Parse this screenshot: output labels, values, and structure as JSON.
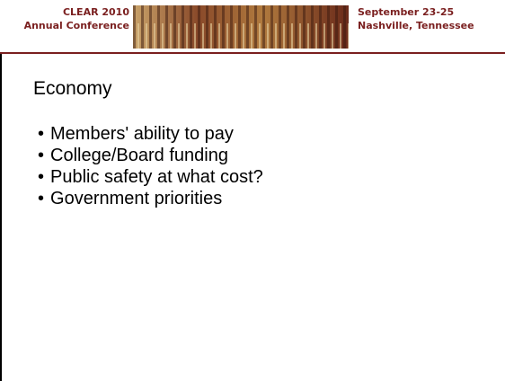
{
  "header": {
    "left": [
      "CLEAR 2010",
      "Annual Conference"
    ],
    "right": [
      "September 23-25",
      "Nashville, Tennessee"
    ]
  },
  "slide": {
    "title": "Economy",
    "bullets": [
      "Members' ability to pay",
      "College/Board funding",
      "Public safety at what cost?",
      "Government priorities"
    ]
  }
}
